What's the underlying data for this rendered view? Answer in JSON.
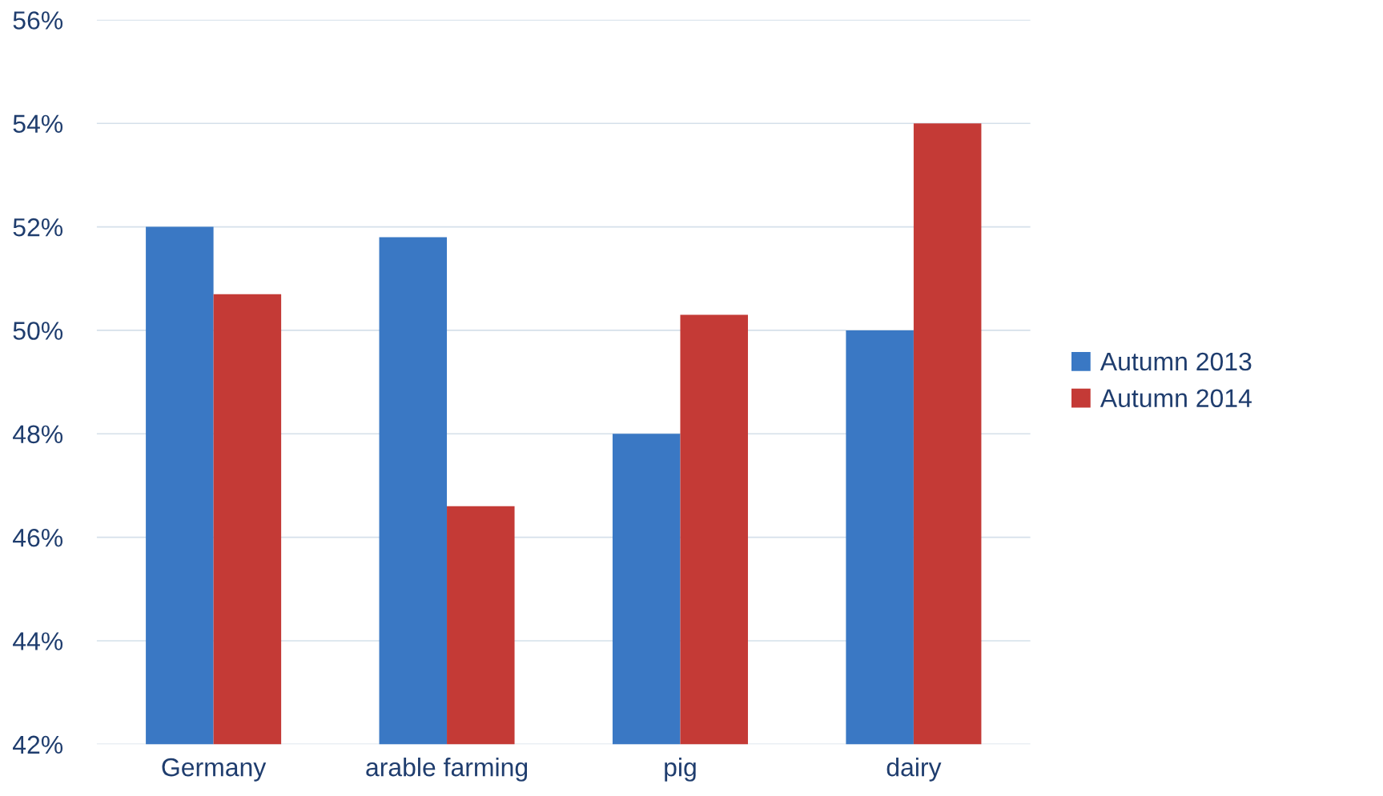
{
  "chart_data": {
    "type": "bar",
    "categories": [
      "Germany",
      "arable farming",
      "pig",
      "dairy"
    ],
    "series": [
      {
        "name": "Autumn 2013",
        "color": "#3a78c4",
        "values": [
          52.0,
          51.8,
          48.0,
          50.0
        ]
      },
      {
        "name": "Autumn 2014",
        "color": "#c43a36",
        "values": [
          50.7,
          46.6,
          50.3,
          54.0
        ]
      }
    ],
    "ylim": [
      42,
      56
    ],
    "yticks": [
      {
        "value": 42,
        "label": "42%"
      },
      {
        "value": 44,
        "label": "44%"
      },
      {
        "value": 46,
        "label": "46%"
      },
      {
        "value": 48,
        "label": "48%"
      },
      {
        "value": 50,
        "label": "50%"
      },
      {
        "value": 52,
        "label": "52%"
      },
      {
        "value": 54,
        "label": "54%"
      },
      {
        "value": 56,
        "label": "56%"
      }
    ],
    "grid": "y",
    "legend": "right"
  }
}
